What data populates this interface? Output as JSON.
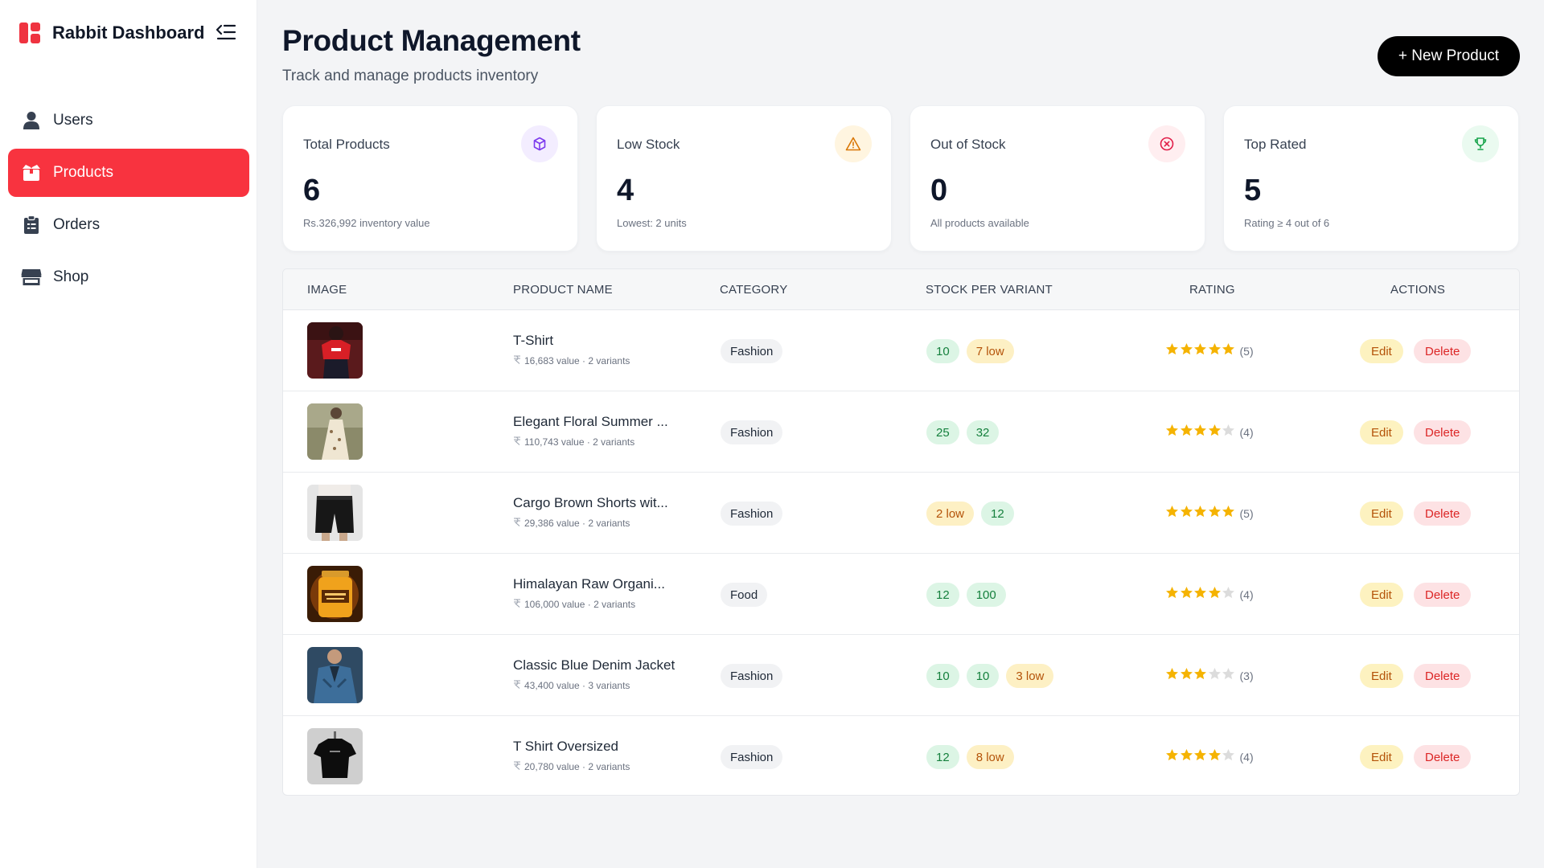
{
  "brand": {
    "title": "Rabbit Dashboard"
  },
  "sidebar": {
    "items": [
      {
        "label": "Users",
        "icon": "user-icon",
        "active": false
      },
      {
        "label": "Products",
        "icon": "box-icon",
        "active": true
      },
      {
        "label": "Orders",
        "icon": "clipboard-icon",
        "active": false
      },
      {
        "label": "Shop",
        "icon": "store-icon",
        "active": false
      }
    ]
  },
  "header": {
    "title": "Product Management",
    "subtitle": "Track and manage products inventory",
    "new_button": "+ New Product"
  },
  "stats": [
    {
      "label": "Total Products",
      "value": "6",
      "note": "Rs.326,992 inventory value",
      "icon": "cube-icon",
      "color": "#7c3aed",
      "bg": "#f3edff"
    },
    {
      "label": "Low Stock",
      "value": "4",
      "note": "Lowest: 2 units",
      "icon": "warning-icon",
      "color": "#d97706",
      "bg": "#fff5e0"
    },
    {
      "label": "Out of Stock",
      "value": "0",
      "note": "All products available",
      "icon": "x-circle-icon",
      "color": "#e11d48",
      "bg": "#ffeef0"
    },
    {
      "label": "Top Rated",
      "value": "5",
      "note": "Rating ≥ 4 out of 6",
      "icon": "trophy-icon",
      "color": "#16a34a",
      "bg": "#eafaf0"
    }
  ],
  "table": {
    "headers": [
      "IMAGE",
      "PRODUCT NAME",
      "CATEGORY",
      "STOCK PER VARIANT",
      "RATING",
      "ACTIONS"
    ],
    "edit_label": "Edit",
    "delete_label": "Delete",
    "rows": [
      {
        "name": "T-Shirt",
        "meta": "16,683 value · 2 variants",
        "category": "Fashion",
        "stock": [
          {
            "text": "10",
            "low": false
          },
          {
            "text": "7 low",
            "low": true
          }
        ],
        "rating": 5,
        "rating_text": "(5)",
        "thumb": "red-tshirt"
      },
      {
        "name": "Elegant Floral Summer ...",
        "meta": "110,743 value · 2 variants",
        "category": "Fashion",
        "stock": [
          {
            "text": "25",
            "low": false
          },
          {
            "text": "32",
            "low": false
          }
        ],
        "rating": 4,
        "rating_text": "(4)",
        "thumb": "floral-dress"
      },
      {
        "name": "Cargo Brown Shorts wit...",
        "meta": "29,386 value · 2 variants",
        "category": "Fashion",
        "stock": [
          {
            "text": "2 low",
            "low": true
          },
          {
            "text": "12",
            "low": false
          }
        ],
        "rating": 5,
        "rating_text": "(5)",
        "thumb": "black-shorts"
      },
      {
        "name": "Himalayan Raw Organi...",
        "meta": "106,000 value · 2 variants",
        "category": "Food",
        "stock": [
          {
            "text": "12",
            "low": false
          },
          {
            "text": "100",
            "low": false
          }
        ],
        "rating": 4,
        "rating_text": "(4)",
        "thumb": "honey-jar"
      },
      {
        "name": "Classic Blue Denim Jacket",
        "meta": "43,400 value · 3 variants",
        "category": "Fashion",
        "stock": [
          {
            "text": "10",
            "low": false
          },
          {
            "text": "10",
            "low": false
          },
          {
            "text": "3 low",
            "low": true
          }
        ],
        "rating": 3,
        "rating_text": "(3)",
        "thumb": "denim-jacket"
      },
      {
        "name": "T Shirt Oversized",
        "meta": "20,780 value · 2 variants",
        "category": "Fashion",
        "stock": [
          {
            "text": "12",
            "low": false
          },
          {
            "text": "8 low",
            "low": true
          }
        ],
        "rating": 4,
        "rating_text": "(4)",
        "thumb": "black-tshirt"
      }
    ]
  }
}
